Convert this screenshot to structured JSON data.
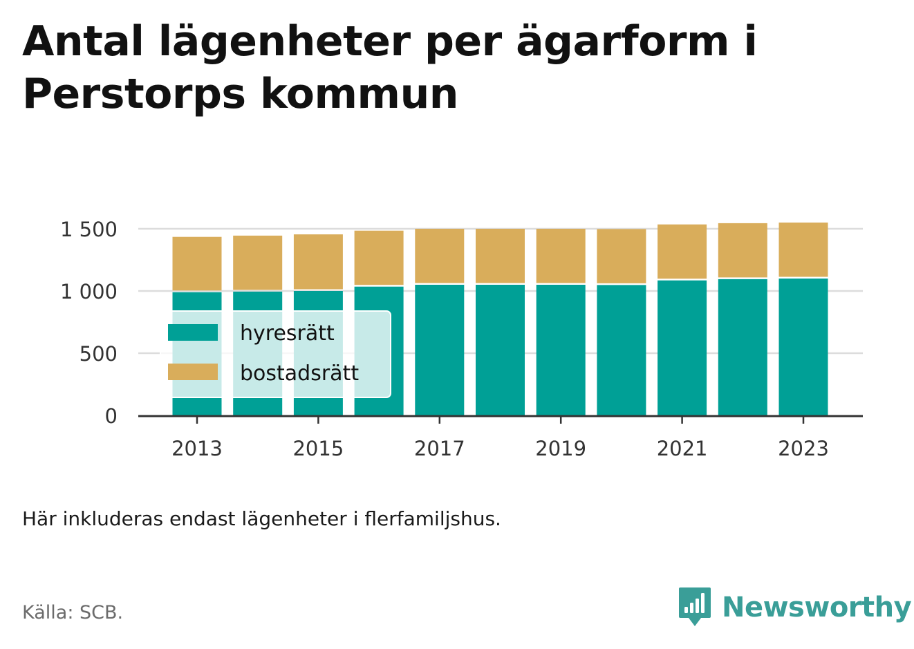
{
  "title": "Antal lägenheter per ägarform i Perstorps kommun",
  "note": "Här inkluderas endast lägenheter i flerfamiljshus.",
  "source": "Källa: SCB.",
  "brand": {
    "name": "Newsworthy",
    "icon": "newsworthy-logo-icon",
    "color": "#3a9e98"
  },
  "colors": {
    "hyresratt": "#00a096",
    "bostadsratt": "#d9ad5b",
    "grid": "#dcdcdc",
    "axis": "#333333"
  },
  "chart_data": {
    "type": "bar",
    "stacked": true,
    "x": [
      2013,
      2014,
      2015,
      2016,
      2017,
      2018,
      2019,
      2020,
      2021,
      2022,
      2023
    ],
    "x_tick_labels": [
      "2013",
      "2015",
      "2017",
      "2019",
      "2021",
      "2023"
    ],
    "y_tick_labels": [
      "0",
      "500",
      "1 000",
      "1 500"
    ],
    "y_ticks": [
      0,
      500,
      1000,
      1500
    ],
    "ylim": [
      0,
      1500
    ],
    "grid": true,
    "legend_position": "left",
    "series": [
      {
        "name": "hyresrätt",
        "color": "#00a096",
        "values": [
          990,
          995,
          1000,
          1035,
          1050,
          1050,
          1050,
          1048,
          1085,
          1095,
          1100
        ]
      },
      {
        "name": "bostadsrätt",
        "color": "#d9ad5b",
        "values": [
          445,
          450,
          455,
          450,
          450,
          450,
          450,
          450,
          450,
          450,
          450
        ]
      }
    ]
  }
}
